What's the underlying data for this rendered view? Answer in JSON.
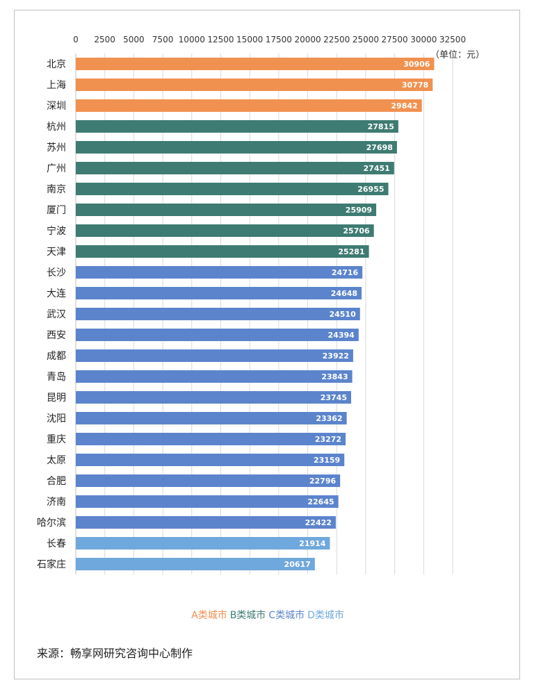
{
  "chart_data": {
    "type": "bar",
    "orientation": "horizontal",
    "unit_label": "（单位：元）",
    "xlim": [
      0,
      32500
    ],
    "x_ticks": [
      0,
      2500,
      5000,
      7500,
      10000,
      12500,
      15000,
      17500,
      20000,
      22500,
      25000,
      27500,
      30000,
      32500
    ],
    "grid": true,
    "categories": [
      "北京",
      "上海",
      "深圳",
      "杭州",
      "苏州",
      "广州",
      "南京",
      "厦门",
      "宁波",
      "天津",
      "长沙",
      "大连",
      "武汉",
      "西安",
      "成都",
      "青岛",
      "昆明",
      "沈阳",
      "重庆",
      "太原",
      "合肥",
      "济南",
      "哈尔滨",
      "长春",
      "石家庄"
    ],
    "values": [
      30906,
      30778,
      29842,
      27815,
      27698,
      27451,
      26955,
      25909,
      25706,
      25281,
      24716,
      24648,
      24510,
      24394,
      23922,
      23843,
      23745,
      23362,
      23272,
      23159,
      22796,
      22645,
      22422,
      21914,
      20617
    ],
    "groups": [
      "A",
      "A",
      "A",
      "B",
      "B",
      "B",
      "B",
      "B",
      "B",
      "B",
      "C",
      "C",
      "C",
      "C",
      "C",
      "C",
      "C",
      "C",
      "C",
      "C",
      "C",
      "C",
      "C",
      "D",
      "D"
    ],
    "legend": [
      {
        "key": "A",
        "label": "A类城市",
        "color": "#F0914F"
      },
      {
        "key": "B",
        "label": "B类城市",
        "color": "#3E7B72"
      },
      {
        "key": "C",
        "label": "C类城市",
        "color": "#5B84CC"
      },
      {
        "key": "D",
        "label": "D类城市",
        "color": "#6FA8DC"
      }
    ],
    "legend_position": "bottom"
  },
  "source": "来源：畅享网研究咨询中心制作"
}
